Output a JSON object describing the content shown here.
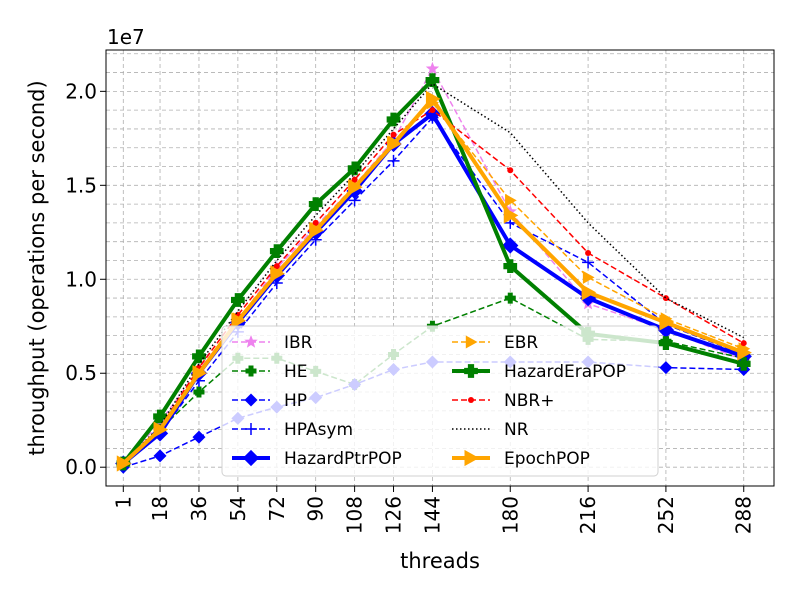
{
  "chart_data": {
    "type": "line",
    "title": "",
    "xlabel": "threads",
    "ylabel": "throughput (operations per second)",
    "offset_text": "1e7",
    "x": [
      1,
      18,
      36,
      54,
      72,
      90,
      108,
      126,
      144,
      180,
      216,
      252,
      288
    ],
    "x_tick_labels": [
      "1",
      "18",
      "36",
      "54",
      "72",
      "90",
      "108",
      "126",
      "144",
      "180",
      "216",
      "252",
      "288"
    ],
    "xlim": [
      -7,
      302
    ],
    "ylim": [
      -0.1,
      2.22
    ],
    "y_ticks": [
      0.0,
      0.5,
      1.0,
      1.5,
      2.0
    ],
    "y_tick_labels": [
      "0.0",
      "0.5",
      "1.0",
      "1.5",
      "2.0"
    ],
    "y_minor_step": 0.1,
    "grid": true,
    "legend_position": "lower-center",
    "series": [
      {
        "name": "IBR",
        "color": "#ee82ee",
        "marker": "star",
        "style": "dashed",
        "width": 1.5,
        "values": [
          0.02,
          0.24,
          0.52,
          0.78,
          1.06,
          1.28,
          1.5,
          1.74,
          2.12,
          1.36,
          0.87,
          0.73,
          0.57
        ]
      },
      {
        "name": "HE",
        "color": "#008000",
        "marker": "plus",
        "style": "dashed",
        "width": 1.5,
        "values": [
          0.02,
          0.2,
          0.4,
          0.58,
          0.58,
          0.51,
          0.44,
          0.6,
          0.75,
          0.9,
          0.68,
          0.67,
          0.58
        ]
      },
      {
        "name": "HP",
        "color": "#0000ff",
        "marker": "diamond",
        "style": "dashed",
        "width": 1.5,
        "values": [
          0.0,
          0.06,
          0.16,
          0.26,
          0.32,
          0.37,
          0.44,
          0.52,
          0.56,
          0.56,
          0.56,
          0.53,
          0.52
        ]
      },
      {
        "name": "HPAsym",
        "color": "#0000ff",
        "marker": "thinplus",
        "style": "dashed",
        "width": 1.5,
        "values": [
          0.02,
          0.18,
          0.46,
          0.72,
          0.98,
          1.21,
          1.42,
          1.63,
          1.86,
          1.3,
          1.09,
          0.76,
          0.6
        ]
      },
      {
        "name": "HazardPtrPOP",
        "color": "#0000ff",
        "marker": "diamond",
        "style": "solid",
        "width": 4,
        "values": [
          0.02,
          0.18,
          0.5,
          0.77,
          1.02,
          1.25,
          1.47,
          1.72,
          1.88,
          1.18,
          0.9,
          0.73,
          0.59
        ]
      },
      {
        "name": "EBR",
        "color": "#ffa500",
        "marker": "triangle-right",
        "style": "dashed",
        "width": 1.5,
        "values": [
          0.02,
          0.2,
          0.51,
          0.79,
          1.04,
          1.27,
          1.5,
          1.73,
          1.94,
          1.42,
          1.01,
          0.79,
          0.63
        ]
      },
      {
        "name": "HazardEraPOP",
        "color": "#008000",
        "marker": "plus",
        "style": "solid",
        "width": 4,
        "values": [
          0.02,
          0.27,
          0.59,
          0.89,
          1.15,
          1.4,
          1.59,
          1.85,
          2.06,
          1.07,
          0.71,
          0.66,
          0.55
        ]
      },
      {
        "name": "NBR+",
        "color": "#ff0000",
        "marker": "dot",
        "style": "dashed",
        "width": 1.5,
        "values": [
          0.02,
          0.21,
          0.53,
          0.81,
          1.07,
          1.3,
          1.53,
          1.77,
          1.9,
          1.58,
          1.14,
          0.9,
          0.66
        ]
      },
      {
        "name": "NR",
        "color": "#000000",
        "marker": "none",
        "style": "dotted",
        "width": 1.5,
        "values": [
          0.02,
          0.22,
          0.55,
          0.83,
          1.1,
          1.34,
          1.56,
          1.8,
          2.04,
          1.78,
          1.3,
          0.9,
          0.69
        ]
      },
      {
        "name": "EpochPOP",
        "color": "#ffa500",
        "marker": "triangle-right",
        "style": "solid",
        "width": 4,
        "values": [
          0.02,
          0.2,
          0.5,
          0.78,
          1.03,
          1.26,
          1.49,
          1.72,
          1.96,
          1.34,
          0.93,
          0.77,
          0.61
        ]
      }
    ]
  }
}
